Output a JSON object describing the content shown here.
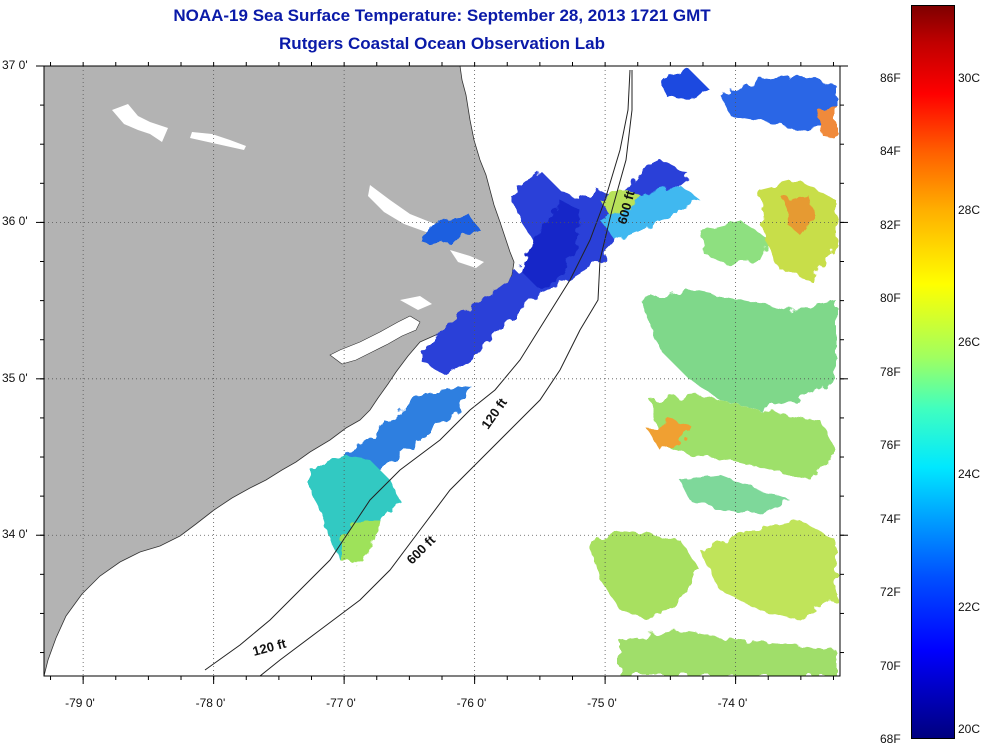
{
  "title_line1": "NOAA-19 Sea Surface Temperature:  September 28, 2013 1721 GMT",
  "title_line2": "Rutgers Coastal Ocean Observation Lab",
  "map": {
    "lon_min": -79.3,
    "lon_max": -73.2,
    "lat_min": 33.1,
    "lat_max": 37.0,
    "lon_ticks": [
      -79,
      -78,
      -77,
      -76,
      -75,
      -74
    ],
    "lon_labels": [
      "-79 0'",
      "-78 0'",
      "-77 0'",
      "-76 0'",
      "-75 0'",
      "-74 0'"
    ],
    "lat_ticks": [
      37,
      36,
      35,
      34
    ],
    "lat_labels": [
      "37 0'",
      "36 0'",
      "35 0'",
      "34 0'"
    ],
    "land_color": "#b3b3b3",
    "grid": "dotted",
    "contour_labels": [
      "600 ft",
      "120 ft",
      "600 ft",
      "120 ft"
    ]
  },
  "colorbar": {
    "f_labels": [
      "86F",
      "84F",
      "82F",
      "80F",
      "78F",
      "76F",
      "74F",
      "72F",
      "70F",
      "68F"
    ],
    "c_labels": [
      "30C",
      "28C",
      "26C",
      "24C",
      "22C",
      "20C"
    ],
    "range_c": [
      20,
      31.1
    ],
    "colors": [
      "#00007f",
      "#0000ff",
      "#00a0ff",
      "#40ffbf",
      "#ffff00",
      "#ff6000",
      "#ff0000",
      "#7f0000"
    ]
  }
}
